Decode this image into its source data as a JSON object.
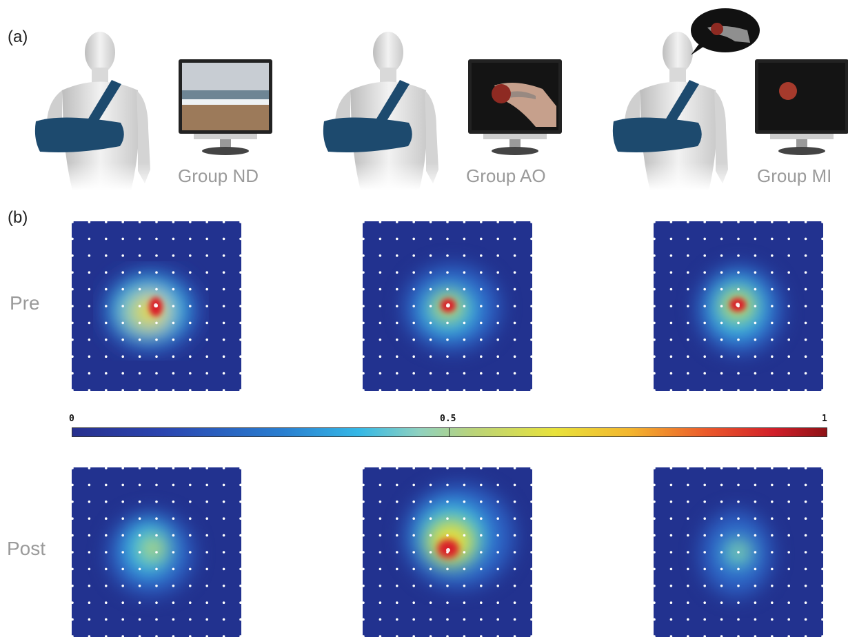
{
  "panels": {
    "a": "(a)",
    "b": "(b)"
  },
  "groups": [
    "Group ND",
    "Group AO",
    "Group MI"
  ],
  "rows": [
    "Pre",
    "Post"
  ],
  "colorbar": {
    "min": "0",
    "mid": "0.5",
    "max": "1"
  },
  "colors": {
    "map_bg": "#22328f",
    "sling": "#1d4a6e",
    "label_gray": "#9a9a9a"
  },
  "icons": [
    "male-figure-with-arm-sling",
    "monitor",
    "beach-scene",
    "hand-holding-apple",
    "apple",
    "thought-bubble"
  ]
}
